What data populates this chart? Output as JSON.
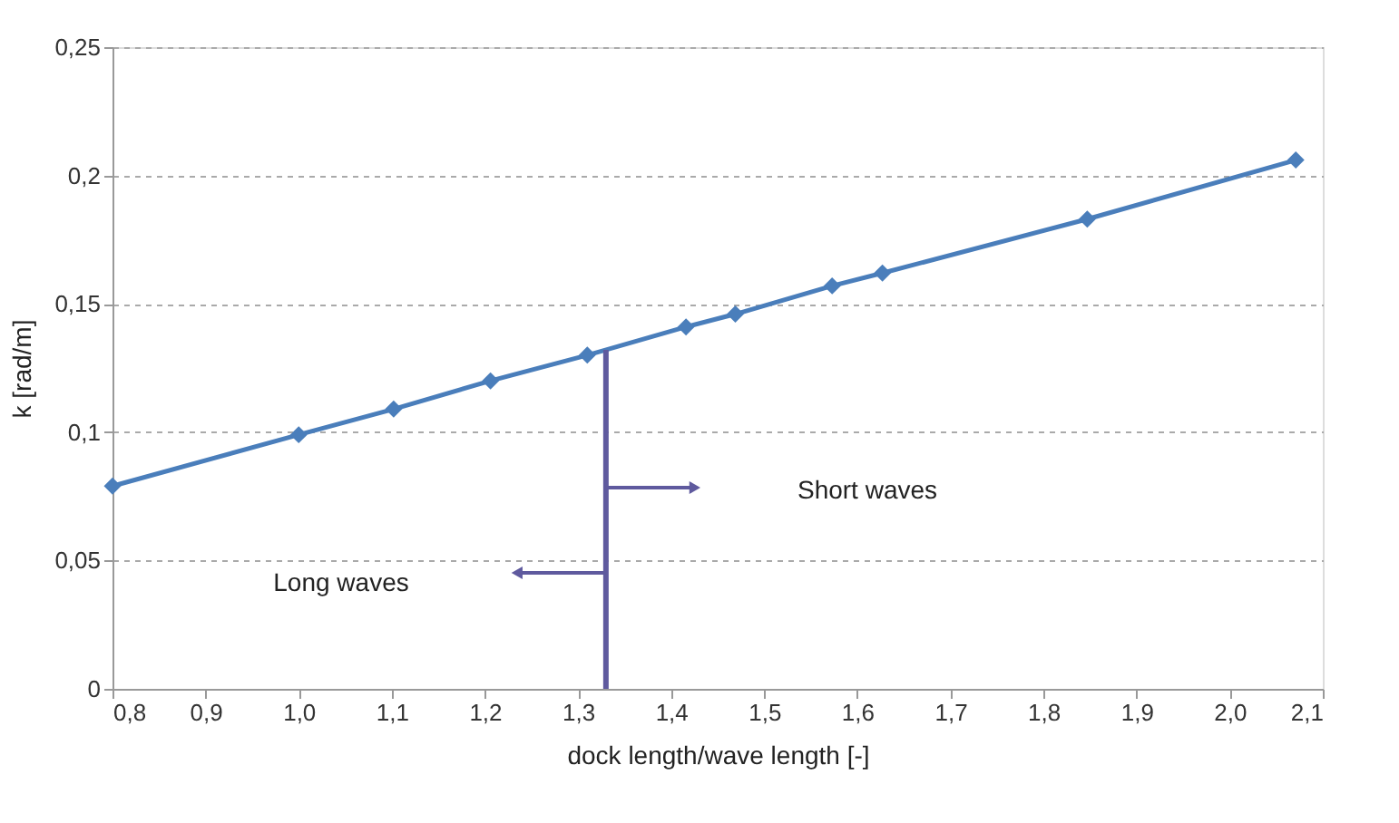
{
  "chart_data": {
    "type": "line",
    "xlabel": "dock length/wave length [-]",
    "ylabel": "k [rad/m]",
    "series": [
      {
        "color": "#4a7ebb",
        "marker": "diamond",
        "line_style": "solid",
        "x": [
          0.8,
          1.0,
          1.102,
          1.206,
          1.31,
          1.416,
          1.469,
          1.573,
          1.627,
          1.847,
          2.071
        ],
        "values": [
          0.079,
          0.099,
          0.109,
          0.12,
          0.13,
          0.141,
          0.146,
          0.157,
          0.162,
          0.183,
          0.206
        ]
      }
    ],
    "xlim": [
      0.8,
      2.1
    ],
    "xticks": [
      {
        "value": 0.8,
        "label": "0,8"
      },
      {
        "value": 0.9,
        "label": "0,9"
      },
      {
        "value": 1.0,
        "label": "1,0"
      },
      {
        "value": 1.1,
        "label": "1,1"
      },
      {
        "value": 1.2,
        "label": "1,2"
      },
      {
        "value": 1.3,
        "label": "1,3"
      },
      {
        "value": 1.4,
        "label": "1,4"
      },
      {
        "value": 1.5,
        "label": "1,5"
      },
      {
        "value": 1.6,
        "label": "1,6"
      },
      {
        "value": 1.7,
        "label": "1,7"
      },
      {
        "value": 1.8,
        "label": "1,8"
      },
      {
        "value": 1.9,
        "label": "1,9"
      },
      {
        "value": 2.0,
        "label": "2,0"
      },
      {
        "value": 2.1,
        "label": "2,1"
      }
    ],
    "ylim": [
      0,
      0.25
    ],
    "yticks": [
      {
        "value": 0,
        "label": "0"
      },
      {
        "value": 0.05,
        "label": "0,05"
      },
      {
        "value": 0.1,
        "label": "0,1"
      },
      {
        "value": 0.15,
        "label": "0,15"
      },
      {
        "value": 0.2,
        "label": "0,2"
      },
      {
        "value": 0.25,
        "label": "0,25"
      }
    ],
    "grid": "y",
    "ref_lines": [
      {
        "axis": "x",
        "value": 1.33,
        "color": "#5f5a9e"
      }
    ],
    "annotations": [
      "Short waves",
      "Long waves"
    ]
  }
}
